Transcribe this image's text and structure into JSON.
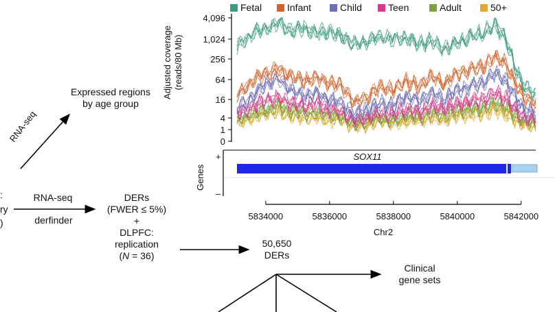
{
  "figure": {
    "left_cut_text": [
      ":",
      "ry",
      ")"
    ],
    "expressed_regions": [
      "Expressed regions",
      "by age group"
    ],
    "rnaseq_diag_label": "RNA-seq",
    "rnaseq_label": "RNA-seq",
    "derfinder_label": "derfinder",
    "ders_block": [
      "DERs",
      "(FWER ≤ 5%)",
      "+",
      "DLPFC:",
      "replication"
    ],
    "n_label": "N",
    "n_value": " = 36)",
    "n_open": "(",
    "ders_count": [
      "50,650",
      "DERs"
    ],
    "clinical": [
      "Clinical",
      "gene sets"
    ]
  },
  "legend": [
    {
      "name": "Fetal",
      "color": "#3d9c7a"
    },
    {
      "name": "Infant",
      "color": "#d4632a"
    },
    {
      "name": "Child",
      "color": "#6f6db5"
    },
    {
      "name": "Teen",
      "color": "#d6398a"
    },
    {
      "name": "Adult",
      "color": "#7ba23f"
    },
    {
      "name": "50+",
      "color": "#e0a92c"
    }
  ],
  "coverage_ylabel": [
    "Adjusted coverage",
    "(reads/80 Mb)"
  ],
  "gene_track": {
    "ylabel": "Genes",
    "plus": "+",
    "minus": "–",
    "gene_name": "SOX11"
  },
  "chart_data": {
    "type": "line",
    "ylabel": "Adjusted coverage (reads/80 Mb)",
    "xlabel": "Chr2",
    "yscale": "log2",
    "yticks": [
      "0",
      "1",
      "4",
      "16",
      "64",
      "256",
      "1,024",
      "4,096"
    ],
    "xticks": [
      "5834000",
      "5836000",
      "5838000",
      "5840000",
      "5842000"
    ],
    "xlim": [
      5833100,
      5842500
    ],
    "series": [
      {
        "name": "Fetal",
        "x": [
          5833100,
          5833600,
          5834000,
          5834400,
          5834800,
          5835200,
          5835600,
          5836000,
          5836400,
          5836800,
          5837200,
          5837600,
          5838000,
          5838400,
          5838800,
          5839200,
          5839600,
          5840000,
          5840400,
          5840800,
          5841200,
          5841500,
          5841800,
          5842100,
          5842500
        ],
        "values": [
          600,
          1500,
          2000,
          3000,
          1800,
          2200,
          1500,
          1700,
          1200,
          700,
          900,
          1200,
          1000,
          1100,
          700,
          900,
          500,
          800,
          1200,
          1500,
          2500,
          1200,
          150,
          40,
          20
        ]
      },
      {
        "name": "Infant",
        "x": [
          5833100,
          5833600,
          5834000,
          5834400,
          5834800,
          5835200,
          5835600,
          5836000,
          5836400,
          5836800,
          5837200,
          5837600,
          5838000,
          5838400,
          5838800,
          5839200,
          5839600,
          5840000,
          5840400,
          5840800,
          5841200,
          5841500,
          5841800,
          5842100,
          5842500
        ],
        "values": [
          20,
          60,
          100,
          130,
          80,
          60,
          70,
          50,
          40,
          12,
          20,
          40,
          30,
          60,
          40,
          80,
          50,
          100,
          120,
          150,
          300,
          200,
          50,
          20,
          10
        ]
      },
      {
        "name": "Child",
        "x": [
          5833100,
          5833600,
          5834000,
          5834400,
          5834800,
          5835200,
          5835600,
          5836000,
          5836400,
          5836800,
          5837200,
          5837600,
          5838000,
          5838400,
          5838800,
          5839200,
          5839600,
          5840000,
          5840400,
          5840800,
          5841200,
          5841500,
          5841800,
          5842100,
          5842500
        ],
        "values": [
          8,
          20,
          50,
          64,
          32,
          20,
          25,
          16,
          12,
          5,
          8,
          12,
          10,
          20,
          14,
          24,
          16,
          32,
          40,
          50,
          100,
          60,
          20,
          8,
          5
        ]
      },
      {
        "name": "Teen",
        "x": [
          5833100,
          5833600,
          5834000,
          5834400,
          5834800,
          5835200,
          5835600,
          5836000,
          5836400,
          5836800,
          5837200,
          5837600,
          5838000,
          5838400,
          5838800,
          5839200,
          5839600,
          5840000,
          5840400,
          5840800,
          5841200,
          5841500,
          5841800,
          5842100,
          5842500
        ],
        "values": [
          5,
          10,
          16,
          18,
          12,
          10,
          12,
          8,
          6,
          3,
          4,
          6,
          5,
          8,
          6,
          10,
          8,
          12,
          14,
          16,
          24,
          18,
          8,
          4,
          3
        ]
      },
      {
        "name": "Adult",
        "x": [
          5833100,
          5833600,
          5834000,
          5834400,
          5834800,
          5835200,
          5835600,
          5836000,
          5836400,
          5836800,
          5837200,
          5837600,
          5838000,
          5838400,
          5838800,
          5839200,
          5839600,
          5840000,
          5840400,
          5840800,
          5841200,
          5841500,
          5841800,
          5842100,
          5842500
        ],
        "values": [
          3,
          6,
          8,
          10,
          7,
          6,
          6,
          5,
          4,
          2,
          3,
          4,
          3,
          5,
          4,
          6,
          5,
          7,
          8,
          9,
          12,
          10,
          5,
          3,
          2
        ]
      },
      {
        "name": "50+",
        "x": [
          5833100,
          5833600,
          5834000,
          5834400,
          5834800,
          5835200,
          5835600,
          5836000,
          5836400,
          5836800,
          5837200,
          5837600,
          5838000,
          5838400,
          5838800,
          5839200,
          5839600,
          5840000,
          5840400,
          5840800,
          5841200,
          5841500,
          5841800,
          5842100,
          5842500
        ],
        "values": [
          2,
          4,
          6,
          7,
          5,
          4,
          4,
          3,
          3,
          1.5,
          2,
          3,
          2,
          3,
          3,
          4,
          3,
          5,
          5,
          6,
          8,
          6,
          3,
          2,
          1.5
        ]
      }
    ]
  }
}
